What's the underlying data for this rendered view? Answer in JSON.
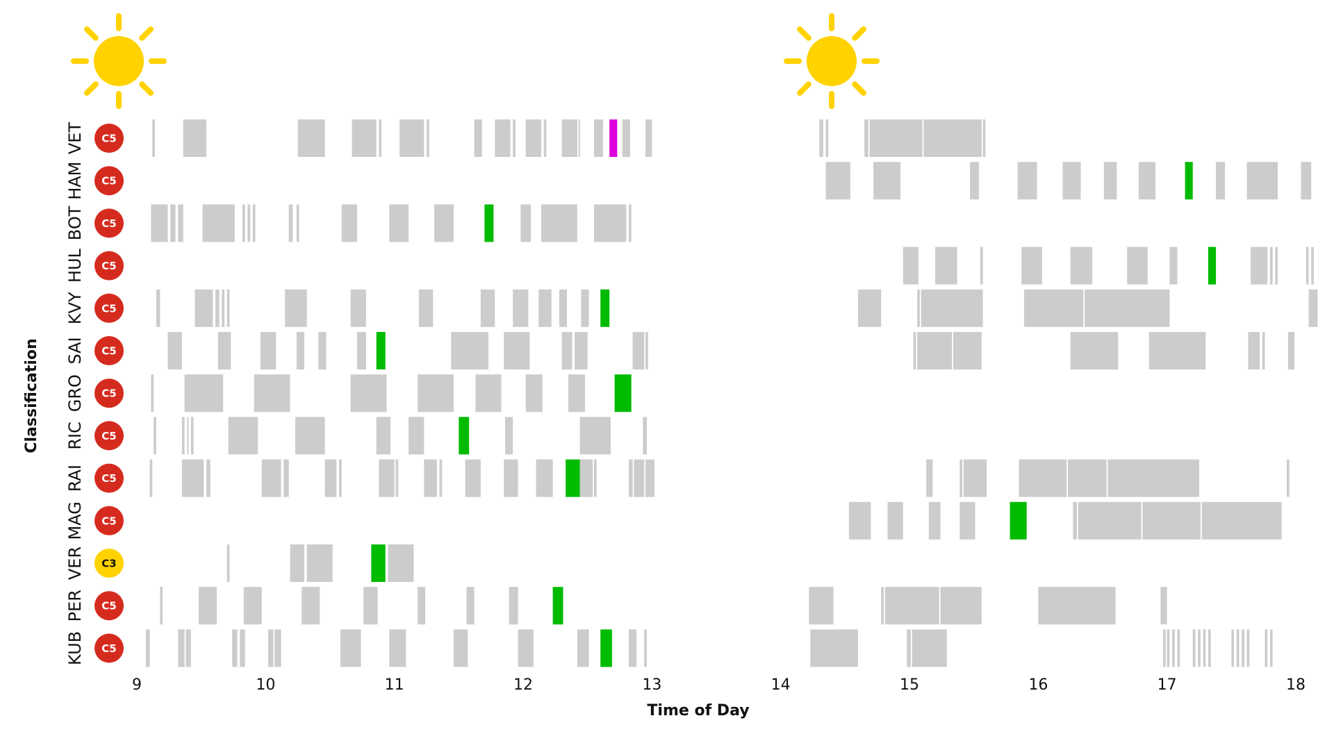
{
  "chart_data": {
    "type": "timeline",
    "xlabel": "Time of Day",
    "ylabel": "Classification",
    "xlim": [
      9,
      18
    ],
    "xticks": [
      9,
      10,
      11,
      12,
      13,
      14,
      15,
      16,
      17,
      18
    ],
    "weather": [
      {
        "session": "morning",
        "icon": "sun-icon",
        "at": 9.2
      },
      {
        "session": "afternoon",
        "icon": "sun-icon",
        "at": 14.45
      }
    ],
    "colors": {
      "lap": "#cccccc",
      "fastest": "#00bb00",
      "overall_fastest": "#dd00dd",
      "c5": "#d52b1e",
      "c3": "#ffd200",
      "sun": "#ffd200"
    },
    "drivers": [
      {
        "code": "VET",
        "compound": "C5",
        "laps": [
          [
            9.12,
            9.14
          ],
          [
            9.36,
            9.54
          ],
          [
            10.25,
            10.46
          ],
          [
            10.67,
            10.86
          ],
          [
            10.88,
            10.9
          ],
          [
            11.04,
            11.23
          ],
          [
            11.25,
            11.27
          ],
          [
            11.62,
            11.68
          ],
          [
            11.78,
            11.9
          ],
          [
            11.92,
            11.94
          ],
          [
            12.02,
            12.14
          ],
          [
            12.16,
            12.18
          ],
          [
            12.3,
            12.42
          ],
          [
            12.43,
            12.44
          ],
          [
            12.55,
            12.62
          ],
          [
            12.77,
            12.83
          ],
          [
            12.95,
            13.0
          ],
          [
            14.3,
            14.33
          ],
          [
            14.35,
            14.37
          ],
          [
            14.65,
            14.68
          ],
          [
            14.69,
            15.1
          ],
          [
            15.11,
            15.56
          ],
          [
            15.57,
            15.59
          ]
        ],
        "fastest": [
          [
            12.67,
            12.73
          ]
        ],
        "overall": true
      },
      {
        "code": "HAM",
        "compound": "C5",
        "laps": [
          [
            14.35,
            14.54
          ],
          [
            14.72,
            14.93
          ],
          [
            15.47,
            15.54
          ],
          [
            15.84,
            15.99
          ],
          [
            16.19,
            16.33
          ],
          [
            16.51,
            16.61
          ],
          [
            16.78,
            16.91
          ],
          [
            17.38,
            17.45
          ],
          [
            17.62,
            17.86
          ],
          [
            18.04,
            18.12
          ]
        ],
        "fastest": [
          [
            17.14,
            17.2
          ]
        ]
      },
      {
        "code": "BOT",
        "compound": "C5",
        "laps": [
          [
            9.11,
            9.24
          ],
          [
            9.26,
            9.3
          ],
          [
            9.32,
            9.36
          ],
          [
            9.51,
            9.76
          ],
          [
            9.82,
            9.84
          ],
          [
            9.86,
            9.88
          ],
          [
            9.9,
            9.92
          ],
          [
            10.18,
            10.21
          ],
          [
            10.24,
            10.26
          ],
          [
            10.59,
            10.71
          ],
          [
            10.96,
            11.11
          ],
          [
            11.31,
            11.46
          ],
          [
            11.98,
            12.06
          ],
          [
            12.14,
            12.42
          ],
          [
            12.55,
            12.8
          ],
          [
            12.82,
            12.84
          ]
        ],
        "fastest": [
          [
            11.7,
            11.77
          ]
        ]
      },
      {
        "code": "HUL",
        "compound": "C5",
        "laps": [
          [
            14.95,
            15.07
          ],
          [
            15.2,
            15.37
          ],
          [
            15.55,
            15.57
          ],
          [
            15.87,
            16.03
          ],
          [
            16.25,
            16.42
          ],
          [
            16.69,
            16.85
          ],
          [
            17.02,
            17.08
          ],
          [
            17.65,
            17.78
          ],
          [
            17.8,
            17.82
          ],
          [
            17.84,
            17.86
          ],
          [
            18.08,
            18.1
          ],
          [
            18.12,
            18.14
          ]
        ],
        "fastest": [
          [
            17.32,
            17.38
          ]
        ]
      },
      {
        "code": "KVY",
        "compound": "C5",
        "laps": [
          [
            9.15,
            9.18
          ],
          [
            9.45,
            9.59
          ],
          [
            9.61,
            9.64
          ],
          [
            9.66,
            9.68
          ],
          [
            9.7,
            9.72
          ],
          [
            10.15,
            10.32
          ],
          [
            10.66,
            10.78
          ],
          [
            11.19,
            11.3
          ],
          [
            11.67,
            11.78
          ],
          [
            11.92,
            12.04
          ],
          [
            12.12,
            12.22
          ],
          [
            12.28,
            12.34
          ],
          [
            12.45,
            12.51
          ],
          [
            14.6,
            14.78
          ],
          [
            15.06,
            15.08
          ],
          [
            15.09,
            15.57
          ],
          [
            15.89,
            16.35
          ],
          [
            16.36,
            17.02
          ],
          [
            18.1,
            18.17
          ]
        ],
        "fastest": [
          [
            12.6,
            12.67
          ]
        ]
      },
      {
        "code": "SAI",
        "compound": "C5",
        "laps": [
          [
            9.24,
            9.35
          ],
          [
            9.63,
            9.73
          ],
          [
            9.96,
            10.08
          ],
          [
            10.24,
            10.3
          ],
          [
            10.41,
            10.47
          ],
          [
            10.71,
            10.78
          ],
          [
            11.44,
            11.73
          ],
          [
            11.85,
            12.05
          ],
          [
            12.3,
            12.38
          ],
          [
            12.4,
            12.5
          ],
          [
            12.85,
            12.94
          ],
          [
            12.95,
            12.97
          ],
          [
            15.03,
            15.05
          ],
          [
            15.06,
            15.33
          ],
          [
            15.34,
            15.56
          ],
          [
            16.25,
            16.62
          ],
          [
            16.86,
            17.3
          ],
          [
            17.63,
            17.72
          ],
          [
            17.74,
            17.76
          ],
          [
            17.94,
            17.99
          ]
        ],
        "fastest": [
          [
            10.86,
            10.93
          ]
        ]
      },
      {
        "code": "GRO",
        "compound": "C5",
        "laps": [
          [
            9.11,
            9.13
          ],
          [
            9.37,
            9.67
          ],
          [
            9.91,
            10.19
          ],
          [
            10.66,
            10.94
          ],
          [
            11.18,
            11.46
          ],
          [
            11.63,
            11.83
          ],
          [
            12.02,
            12.15
          ],
          [
            12.35,
            12.48
          ]
        ],
        "fastest": [
          [
            12.71,
            12.84
          ]
        ]
      },
      {
        "code": "RIC",
        "compound": "C5",
        "laps": [
          [
            9.13,
            9.15
          ],
          [
            9.35,
            9.37
          ],
          [
            9.39,
            9.4
          ],
          [
            9.42,
            9.44
          ],
          [
            9.71,
            9.94
          ],
          [
            10.23,
            10.46
          ],
          [
            10.86,
            10.97
          ],
          [
            11.11,
            11.23
          ],
          [
            11.86,
            11.92
          ],
          [
            12.44,
            12.68
          ],
          [
            12.93,
            12.96
          ]
        ],
        "fastest": [
          [
            11.5,
            11.58
          ]
        ]
      },
      {
        "code": "RAI",
        "compound": "C5",
        "laps": [
          [
            9.1,
            9.12
          ],
          [
            9.35,
            9.52
          ],
          [
            9.54,
            9.57
          ],
          [
            9.97,
            10.12
          ],
          [
            10.14,
            10.18
          ],
          [
            10.46,
            10.55
          ],
          [
            10.57,
            10.59
          ],
          [
            10.88,
            11.0
          ],
          [
            11.01,
            11.03
          ],
          [
            11.23,
            11.33
          ],
          [
            11.35,
            11.37
          ],
          [
            11.55,
            11.67
          ],
          [
            11.85,
            11.96
          ],
          [
            12.1,
            12.23
          ],
          [
            12.44,
            12.54
          ],
          [
            12.55,
            12.57
          ],
          [
            12.82,
            12.85
          ],
          [
            12.86,
            12.94
          ],
          [
            12.95,
            13.02
          ],
          [
            15.13,
            15.18
          ],
          [
            15.39,
            15.41
          ],
          [
            15.42,
            15.6
          ],
          [
            15.85,
            16.22
          ],
          [
            16.23,
            16.53
          ],
          [
            16.54,
            17.25
          ],
          [
            17.93,
            17.95
          ]
        ],
        "fastest": [
          [
            12.33,
            12.44
          ]
        ]
      },
      {
        "code": "MAG",
        "compound": "C5",
        "laps": [
          [
            14.53,
            14.7
          ],
          [
            14.83,
            14.95
          ],
          [
            15.15,
            15.24
          ],
          [
            15.39,
            15.51
          ],
          [
            16.27,
            16.3
          ],
          [
            16.31,
            16.8
          ],
          [
            16.81,
            17.26
          ],
          [
            17.27,
            17.89
          ]
        ],
        "fastest": [
          [
            15.78,
            15.91
          ]
        ]
      },
      {
        "code": "VER",
        "compound": "C3",
        "laps": [
          [
            9.7,
            9.72
          ],
          [
            10.19,
            10.3
          ],
          [
            10.32,
            10.52
          ],
          [
            10.95,
            11.15
          ]
        ],
        "fastest": [
          [
            10.82,
            10.93
          ]
        ]
      },
      {
        "code": "PER",
        "compound": "C5",
        "laps": [
          [
            9.18,
            9.2
          ],
          [
            9.48,
            9.62
          ],
          [
            9.83,
            9.97
          ],
          [
            10.28,
            10.42
          ],
          [
            10.76,
            10.87
          ],
          [
            11.18,
            11.24
          ],
          [
            11.56,
            11.62
          ],
          [
            11.89,
            11.96
          ],
          [
            14.22,
            14.41
          ],
          [
            14.78,
            14.8
          ],
          [
            14.81,
            15.23
          ],
          [
            15.24,
            15.56
          ],
          [
            16.0,
            16.6
          ],
          [
            16.95,
            17.0
          ]
        ],
        "fastest": [
          [
            12.23,
            12.31
          ]
        ]
      },
      {
        "code": "KUB",
        "compound": "C5",
        "laps": [
          [
            9.07,
            9.1
          ],
          [
            9.32,
            9.37
          ],
          [
            9.38,
            9.42
          ],
          [
            9.74,
            9.78
          ],
          [
            9.8,
            9.84
          ],
          [
            10.02,
            10.06
          ],
          [
            10.07,
            10.12
          ],
          [
            10.58,
            10.74
          ],
          [
            10.96,
            11.09
          ],
          [
            11.46,
            11.57
          ],
          [
            11.96,
            12.08
          ],
          [
            12.42,
            12.51
          ],
          [
            12.82,
            12.88
          ],
          [
            12.94,
            12.96
          ],
          [
            14.23,
            14.6
          ],
          [
            14.98,
            15.01
          ],
          [
            15.02,
            15.29
          ],
          [
            16.97,
            16.99
          ],
          [
            17.0,
            17.02
          ],
          [
            17.04,
            17.06
          ],
          [
            17.08,
            17.1
          ],
          [
            17.2,
            17.22
          ],
          [
            17.24,
            17.26
          ],
          [
            17.28,
            17.3
          ],
          [
            17.32,
            17.34
          ],
          [
            17.5,
            17.52
          ],
          [
            17.54,
            17.56
          ],
          [
            17.58,
            17.6
          ],
          [
            17.62,
            17.64
          ],
          [
            17.76,
            17.78
          ],
          [
            17.8,
            17.82
          ]
        ],
        "fastest": [
          [
            12.6,
            12.69
          ]
        ]
      }
    ]
  }
}
